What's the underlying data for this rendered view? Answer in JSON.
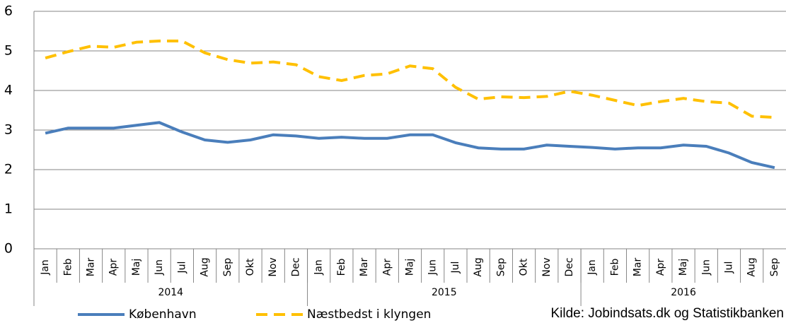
{
  "chart_data": {
    "type": "line",
    "categories": [
      "Jan",
      "Feb",
      "Mar",
      "Apr",
      "Maj",
      "Jun",
      "Jul",
      "Aug",
      "Sep",
      "Okt",
      "Nov",
      "Dec",
      "Jan",
      "Feb",
      "Mar",
      "Apr",
      "Maj",
      "Jun",
      "Jul",
      "Aug",
      "Sep",
      "Okt",
      "Nov",
      "Dec",
      "Jan",
      "Feb",
      "Mar",
      "Apr",
      "Maj",
      "Jun",
      "Jul",
      "Aug",
      "Sep"
    ],
    "year_groups": [
      "2014",
      "2015",
      "2016"
    ],
    "series": [
      {
        "name": "København",
        "color": "#4a7ebb",
        "dash": false,
        "values": [
          2.92,
          3.05,
          3.05,
          3.05,
          3.12,
          3.19,
          2.95,
          2.75,
          2.69,
          2.75,
          2.88,
          2.85,
          2.79,
          2.82,
          2.79,
          2.79,
          2.88,
          2.88,
          2.68,
          2.55,
          2.52,
          2.52,
          2.62,
          2.59,
          2.56,
          2.52,
          2.55,
          2.55,
          2.62,
          2.59,
          2.42,
          2.18,
          2.05
        ]
      },
      {
        "name": "Næstbedst i klyngen",
        "color": "#ffc000",
        "dash": true,
        "values": [
          4.82,
          4.98,
          5.12,
          5.09,
          5.22,
          5.25,
          5.25,
          4.95,
          4.78,
          4.69,
          4.72,
          4.65,
          4.35,
          4.25,
          4.38,
          4.42,
          4.62,
          4.55,
          4.08,
          3.78,
          3.84,
          3.82,
          3.85,
          3.98,
          3.88,
          3.75,
          3.62,
          3.72,
          3.8,
          3.72,
          3.68,
          3.35,
          3.32
        ]
      }
    ],
    "ylim": [
      0,
      6
    ],
    "yticks": [
      0,
      1,
      2,
      3,
      4,
      5,
      6
    ],
    "grid": true,
    "source": "Kilde: Jobindsats.dk og Statistikbanken"
  }
}
